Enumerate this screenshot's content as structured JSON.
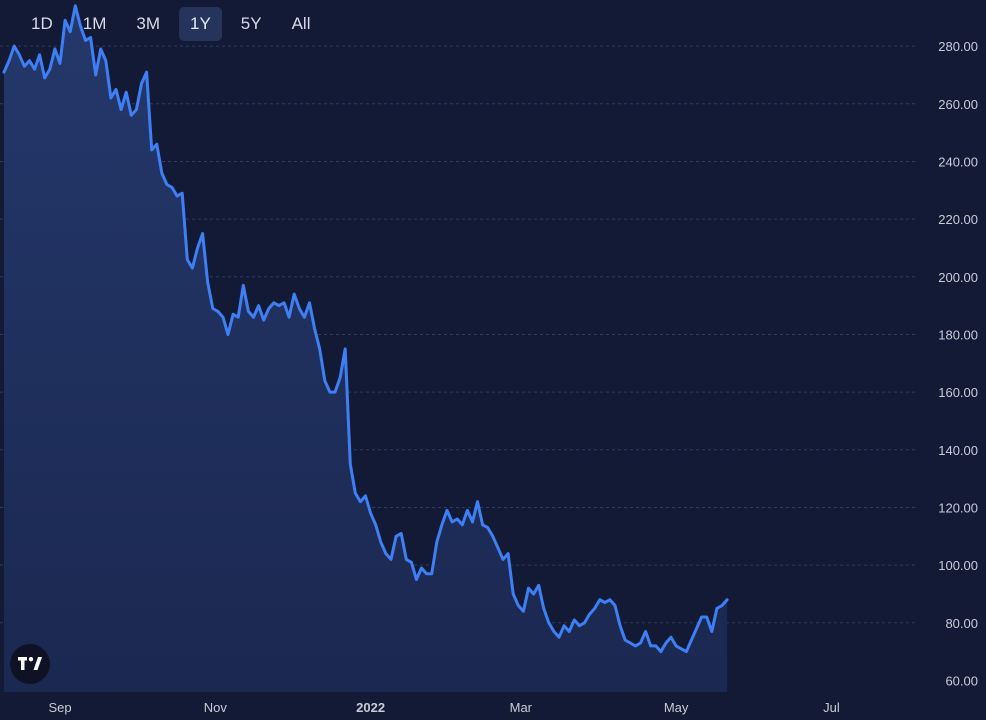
{
  "range_tabs": [
    {
      "label": "1D",
      "active": false
    },
    {
      "label": "1M",
      "active": false
    },
    {
      "label": "3M",
      "active": false
    },
    {
      "label": "1Y",
      "active": true
    },
    {
      "label": "5Y",
      "active": false
    },
    {
      "label": "All",
      "active": false
    }
  ],
  "logo": {
    "icon": "tradingview-logo-icon"
  },
  "colors": {
    "background": "#131a35",
    "line": "#3f7ff5",
    "area_top": "#24386b",
    "area_bottom": "#1b2850",
    "grid": "#2e3b66",
    "axis_text": "#c9ccd6"
  },
  "chart_data": {
    "type": "area",
    "x_range": [
      "2021-08-10",
      "2022-08-04"
    ],
    "ylim": [
      56,
      296
    ],
    "y_ticks": [
      60,
      80,
      100,
      120,
      140,
      160,
      180,
      200,
      220,
      240,
      260,
      280
    ],
    "y_tick_labels": [
      "60.00",
      "80.00",
      "100.00",
      "120.00",
      "140.00",
      "160.00",
      "180.00",
      "200.00",
      "220.00",
      "240.00",
      "260.00",
      "280.00"
    ],
    "x_tick_labels": [
      {
        "label": "Sep",
        "date": "2021-09-01",
        "bold": false
      },
      {
        "label": "Nov",
        "date": "2021-11-01",
        "bold": false
      },
      {
        "label": "2022",
        "date": "2022-01-01",
        "bold": true
      },
      {
        "label": "Mar",
        "date": "2022-03-01",
        "bold": false
      },
      {
        "label": "May",
        "date": "2022-05-01",
        "bold": false
      },
      {
        "label": "Jul",
        "date": "2022-07-01",
        "bold": false
      }
    ],
    "grid": "horizontal-dotted",
    "axis_position": "right",
    "series": [
      {
        "points": [
          [
            "2021-08-10",
            271
          ],
          [
            "2021-08-12",
            275
          ],
          [
            "2021-08-14",
            280
          ],
          [
            "2021-08-16",
            277
          ],
          [
            "2021-08-18",
            273
          ],
          [
            "2021-08-20",
            275
          ],
          [
            "2021-08-22",
            272
          ],
          [
            "2021-08-24",
            277
          ],
          [
            "2021-08-26",
            269
          ],
          [
            "2021-08-28",
            272
          ],
          [
            "2021-08-30",
            279
          ],
          [
            "2021-09-01",
            274
          ],
          [
            "2021-09-03",
            289
          ],
          [
            "2021-09-05",
            285
          ],
          [
            "2021-09-07",
            294
          ],
          [
            "2021-09-09",
            287
          ],
          [
            "2021-09-11",
            282
          ],
          [
            "2021-09-13",
            283
          ],
          [
            "2021-09-15",
            270
          ],
          [
            "2021-09-17",
            279
          ],
          [
            "2021-09-19",
            275
          ],
          [
            "2021-09-21",
            262
          ],
          [
            "2021-09-23",
            265
          ],
          [
            "2021-09-25",
            258
          ],
          [
            "2021-09-27",
            264
          ],
          [
            "2021-09-29",
            256
          ],
          [
            "2021-10-01",
            258
          ],
          [
            "2021-10-03",
            267
          ],
          [
            "2021-10-05",
            271
          ],
          [
            "2021-10-07",
            244
          ],
          [
            "2021-10-09",
            246
          ],
          [
            "2021-10-11",
            236
          ],
          [
            "2021-10-13",
            232
          ],
          [
            "2021-10-15",
            231
          ],
          [
            "2021-10-17",
            228
          ],
          [
            "2021-10-19",
            229
          ],
          [
            "2021-10-21",
            206
          ],
          [
            "2021-10-23",
            203
          ],
          [
            "2021-10-25",
            210
          ],
          [
            "2021-10-27",
            215
          ],
          [
            "2021-10-29",
            198
          ],
          [
            "2021-10-31",
            189
          ],
          [
            "2021-11-02",
            188
          ],
          [
            "2021-11-04",
            186
          ],
          [
            "2021-11-06",
            180
          ],
          [
            "2021-11-08",
            187
          ],
          [
            "2021-11-10",
            186
          ],
          [
            "2021-11-12",
            197
          ],
          [
            "2021-11-14",
            188
          ],
          [
            "2021-11-16",
            186
          ],
          [
            "2021-11-18",
            190
          ],
          [
            "2021-11-20",
            185
          ],
          [
            "2021-11-22",
            189
          ],
          [
            "2021-11-24",
            191
          ],
          [
            "2021-11-26",
            190
          ],
          [
            "2021-11-28",
            191
          ],
          [
            "2021-11-30",
            186
          ],
          [
            "2021-12-02",
            194
          ],
          [
            "2021-12-04",
            189
          ],
          [
            "2021-12-06",
            186
          ],
          [
            "2021-12-08",
            191
          ],
          [
            "2021-12-10",
            182
          ],
          [
            "2021-12-12",
            175
          ],
          [
            "2021-12-14",
            164
          ],
          [
            "2021-12-16",
            160
          ],
          [
            "2021-12-18",
            160
          ],
          [
            "2021-12-20",
            165
          ],
          [
            "2021-12-22",
            175
          ],
          [
            "2021-12-24",
            135
          ],
          [
            "2021-12-26",
            125
          ],
          [
            "2021-12-28",
            122
          ],
          [
            "2021-12-30",
            124
          ],
          [
            "2022-01-01",
            118
          ],
          [
            "2022-01-03",
            114
          ],
          [
            "2022-01-05",
            108
          ],
          [
            "2022-01-07",
            104
          ],
          [
            "2022-01-09",
            102
          ],
          [
            "2022-01-11",
            110
          ],
          [
            "2022-01-13",
            111
          ],
          [
            "2022-01-15",
            102
          ],
          [
            "2022-01-17",
            101
          ],
          [
            "2022-01-19",
            95
          ],
          [
            "2022-01-21",
            99
          ],
          [
            "2022-01-23",
            97
          ],
          [
            "2022-01-25",
            97
          ],
          [
            "2022-01-27",
            108
          ],
          [
            "2022-01-29",
            114
          ],
          [
            "2022-01-31",
            119
          ],
          [
            "2022-02-02",
            115
          ],
          [
            "2022-02-04",
            116
          ],
          [
            "2022-02-06",
            114
          ],
          [
            "2022-02-08",
            119
          ],
          [
            "2022-02-10",
            115
          ],
          [
            "2022-02-12",
            122
          ],
          [
            "2022-02-14",
            114
          ],
          [
            "2022-02-16",
            113
          ],
          [
            "2022-02-18",
            110
          ],
          [
            "2022-02-20",
            106
          ],
          [
            "2022-02-22",
            102
          ],
          [
            "2022-02-24",
            104
          ],
          [
            "2022-02-26",
            90
          ],
          [
            "2022-02-28",
            86
          ],
          [
            "2022-03-02",
            84
          ],
          [
            "2022-03-04",
            92
          ],
          [
            "2022-03-06",
            90
          ],
          [
            "2022-03-08",
            93
          ],
          [
            "2022-03-10",
            85
          ],
          [
            "2022-03-12",
            80
          ],
          [
            "2022-03-14",
            77
          ],
          [
            "2022-03-16",
            75
          ],
          [
            "2022-03-18",
            79
          ],
          [
            "2022-03-20",
            77
          ],
          [
            "2022-03-22",
            81
          ],
          [
            "2022-03-24",
            79
          ],
          [
            "2022-03-26",
            80
          ],
          [
            "2022-03-28",
            83
          ],
          [
            "2022-03-30",
            85
          ],
          [
            "2022-04-01",
            88
          ],
          [
            "2022-04-03",
            87
          ],
          [
            "2022-04-05",
            88
          ],
          [
            "2022-04-07",
            86
          ],
          [
            "2022-04-09",
            79
          ],
          [
            "2022-04-11",
            74
          ],
          [
            "2022-04-13",
            73
          ],
          [
            "2022-04-15",
            72
          ],
          [
            "2022-04-17",
            73
          ],
          [
            "2022-04-19",
            77
          ],
          [
            "2022-04-21",
            72
          ],
          [
            "2022-04-23",
            72
          ],
          [
            "2022-04-25",
            70
          ],
          [
            "2022-04-27",
            73
          ],
          [
            "2022-04-29",
            75
          ],
          [
            "2022-05-01",
            72
          ],
          [
            "2022-05-03",
            71
          ],
          [
            "2022-05-05",
            70
          ],
          [
            "2022-05-07",
            74
          ],
          [
            "2022-05-09",
            78
          ],
          [
            "2022-05-11",
            82
          ],
          [
            "2022-05-13",
            82
          ],
          [
            "2022-05-15",
            77
          ],
          [
            "2022-05-17",
            85
          ],
          [
            "2022-05-19",
            86
          ],
          [
            "2022-05-21",
            88
          ]
        ]
      }
    ]
  }
}
